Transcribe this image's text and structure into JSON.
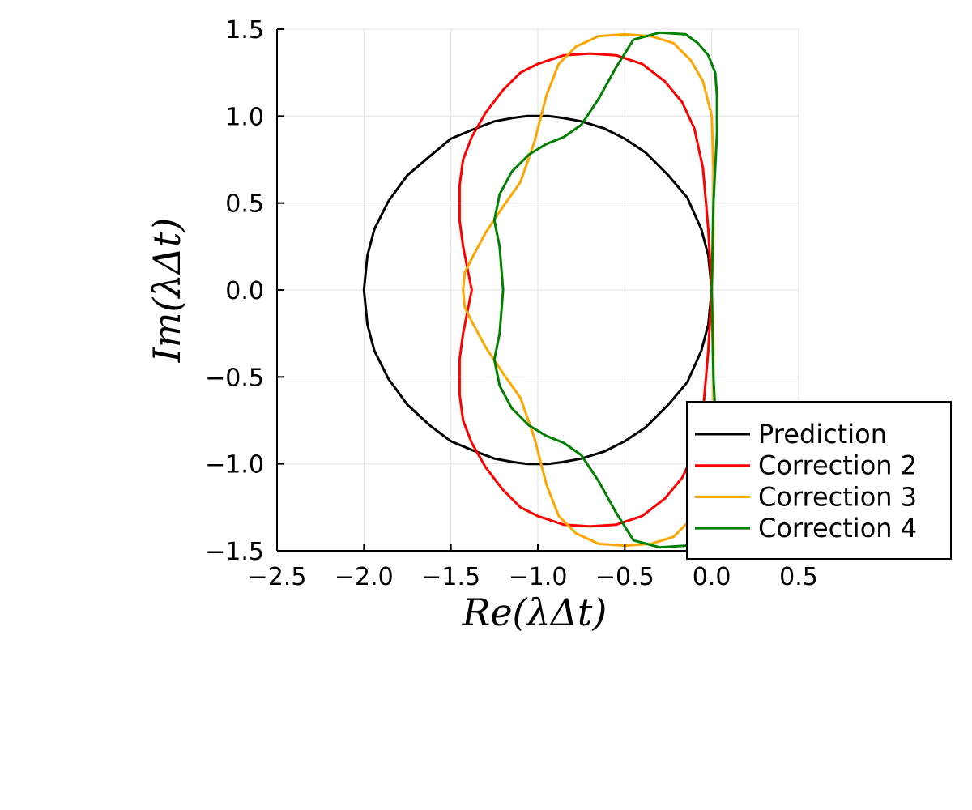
{
  "chart_data": {
    "type": "line",
    "xlabel": "Re(λΔt)",
    "ylabel": "Im(λΔt)",
    "xlim": [
      -2.5,
      0.5
    ],
    "ylim": [
      -1.5,
      1.5
    ],
    "xticks": [
      -2.5,
      -2.0,
      -1.5,
      -1.0,
      -0.5,
      0.0,
      0.5
    ],
    "yticks": [
      -1.5,
      -1.0,
      -0.5,
      0.0,
      0.5,
      1.0,
      1.5
    ],
    "xtick_labels": [
      "−2.5",
      "−2.0",
      "−1.5",
      "−1.0",
      "−0.5",
      "0.0",
      "0.5"
    ],
    "ytick_labels": [
      "−1.5",
      "−1.0",
      "−0.5",
      "0.0",
      "0.5",
      "1.0",
      "1.5"
    ],
    "grid": true,
    "legend_position": "bottom-right",
    "series": [
      {
        "name": "Prediction",
        "color": "#000000",
        "x": [
          0.0,
          -0.02,
          -0.06,
          -0.14,
          -0.25,
          -0.38,
          -0.5,
          -0.62,
          -0.75,
          -0.86,
          -0.94,
          -1.0,
          -1.06,
          -1.14,
          -1.25,
          -1.38,
          -1.5,
          -1.62,
          -1.75,
          -1.86,
          -1.94,
          -1.98,
          -2.0,
          -1.98,
          -1.94,
          -1.86,
          -1.75,
          -1.62,
          -1.5,
          -1.38,
          -1.25,
          -1.14,
          -1.06,
          -1.0,
          -0.94,
          -0.86,
          -0.75,
          -0.62,
          -0.5,
          -0.38,
          -0.25,
          -0.14,
          -0.06,
          -0.02,
          0.0
        ],
        "y": [
          0.0,
          0.2,
          0.35,
          0.53,
          0.66,
          0.79,
          0.87,
          0.93,
          0.97,
          0.99,
          1.0,
          1.0,
          1.0,
          0.99,
          0.97,
          0.92,
          0.87,
          0.77,
          0.66,
          0.51,
          0.35,
          0.2,
          0.0,
          -0.2,
          -0.35,
          -0.51,
          -0.66,
          -0.78,
          -0.87,
          -0.92,
          -0.97,
          -0.99,
          -1.0,
          -1.0,
          -1.0,
          -0.99,
          -0.97,
          -0.93,
          -0.87,
          -0.79,
          -0.66,
          -0.53,
          -0.35,
          -0.2,
          0.0
        ]
      },
      {
        "name": "Correction 2",
        "color": "#ff0000",
        "x": [
          0.0,
          -0.02,
          -0.05,
          -0.1,
          -0.17,
          -0.27,
          -0.4,
          -0.55,
          -0.7,
          -0.85,
          -1.0,
          -1.1,
          -1.2,
          -1.3,
          -1.38,
          -1.43,
          -1.45,
          -1.45,
          -1.43,
          -1.4,
          -1.38,
          -1.4,
          -1.43,
          -1.45,
          -1.45,
          -1.43,
          -1.38,
          -1.3,
          -1.2,
          -1.1,
          -1.0,
          -0.85,
          -0.7,
          -0.55,
          -0.4,
          -0.27,
          -0.17,
          -0.1,
          -0.05,
          -0.02,
          0.0
        ],
        "y": [
          0.0,
          0.35,
          0.7,
          0.93,
          1.08,
          1.2,
          1.3,
          1.35,
          1.36,
          1.35,
          1.3,
          1.25,
          1.15,
          1.02,
          0.88,
          0.75,
          0.6,
          0.4,
          0.25,
          0.1,
          0.0,
          -0.1,
          -0.25,
          -0.4,
          -0.6,
          -0.75,
          -0.88,
          -1.02,
          -1.15,
          -1.25,
          -1.3,
          -1.35,
          -1.36,
          -1.35,
          -1.3,
          -1.2,
          -1.08,
          -0.93,
          -0.7,
          -0.35,
          0.0
        ],
        "path_break": false
      },
      {
        "name": "Correction 3",
        "color": "#ffa500",
        "x": [
          0.0,
          0.01,
          0.01,
          0.0,
          -0.05,
          -0.12,
          -0.22,
          -0.35,
          -0.5,
          -0.65,
          -0.78,
          -0.88,
          -0.95,
          -1.02,
          -1.1,
          -1.2,
          -1.3,
          -1.37,
          -1.42,
          -1.43,
          -1.42,
          -1.37,
          -1.3,
          -1.2,
          -1.1,
          -1.02,
          -0.95,
          -0.88,
          -0.78,
          -0.65,
          -0.5,
          -0.35,
          -0.22,
          -0.12,
          -0.05,
          0.0,
          0.01,
          0.01,
          0.0
        ],
        "y": [
          0.0,
          0.3,
          0.7,
          1.0,
          1.2,
          1.32,
          1.42,
          1.46,
          1.47,
          1.46,
          1.4,
          1.3,
          1.12,
          0.85,
          0.62,
          0.48,
          0.33,
          0.2,
          0.1,
          0.0,
          -0.1,
          -0.2,
          -0.33,
          -0.48,
          -0.62,
          -0.85,
          -1.12,
          -1.3,
          -1.4,
          -1.46,
          -1.47,
          -1.46,
          -1.42,
          -1.32,
          -1.2,
          -1.0,
          -0.7,
          -0.3,
          0.0
        ]
      },
      {
        "name": "Correction 4",
        "color": "#008000",
        "x": [
          0.0,
          0.01,
          0.03,
          0.03,
          0.02,
          -0.02,
          -0.08,
          -0.15,
          -0.3,
          -0.45,
          -0.55,
          -0.65,
          -0.75,
          -0.85,
          -0.95,
          -1.05,
          -1.15,
          -1.22,
          -1.25,
          -1.22,
          -1.2,
          -1.22,
          -1.25,
          -1.22,
          -1.15,
          -1.05,
          -0.95,
          -0.85,
          -0.75,
          -0.65,
          -0.55,
          -0.45,
          -0.3,
          -0.15,
          -0.08,
          -0.02,
          0.02,
          0.03,
          0.03,
          0.01,
          0.0
        ],
        "y": [
          0.0,
          0.5,
          0.9,
          1.12,
          1.25,
          1.35,
          1.42,
          1.47,
          1.48,
          1.44,
          1.28,
          1.1,
          0.95,
          0.88,
          0.84,
          0.78,
          0.68,
          0.55,
          0.4,
          0.25,
          0.0,
          -0.25,
          -0.4,
          -0.55,
          -0.68,
          -0.78,
          -0.84,
          -0.88,
          -0.95,
          -1.1,
          -1.28,
          -1.44,
          -1.48,
          -1.47,
          -1.42,
          -1.35,
          -1.25,
          -1.12,
          -0.9,
          -0.5,
          0.0
        ]
      }
    ]
  }
}
